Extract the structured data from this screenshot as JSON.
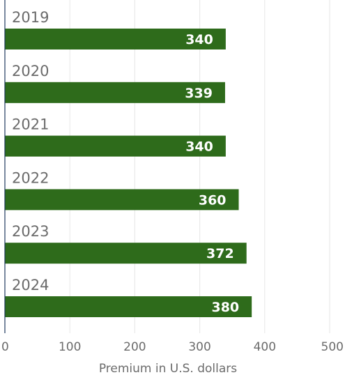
{
  "chart_data": {
    "type": "bar",
    "orientation": "horizontal",
    "categories": [
      "2019",
      "2020",
      "2021",
      "2022",
      "2023",
      "2024"
    ],
    "values": [
      340,
      339,
      340,
      360,
      372,
      380
    ],
    "xlabel": "Premium in U.S. dollars",
    "ylabel": "",
    "xlim": [
      0,
      500
    ],
    "xticks": [
      0,
      100,
      200,
      300,
      400,
      500
    ],
    "grid": "vertical",
    "bar_color": "#2e6b1b",
    "value_label_color": "#ffffff"
  }
}
